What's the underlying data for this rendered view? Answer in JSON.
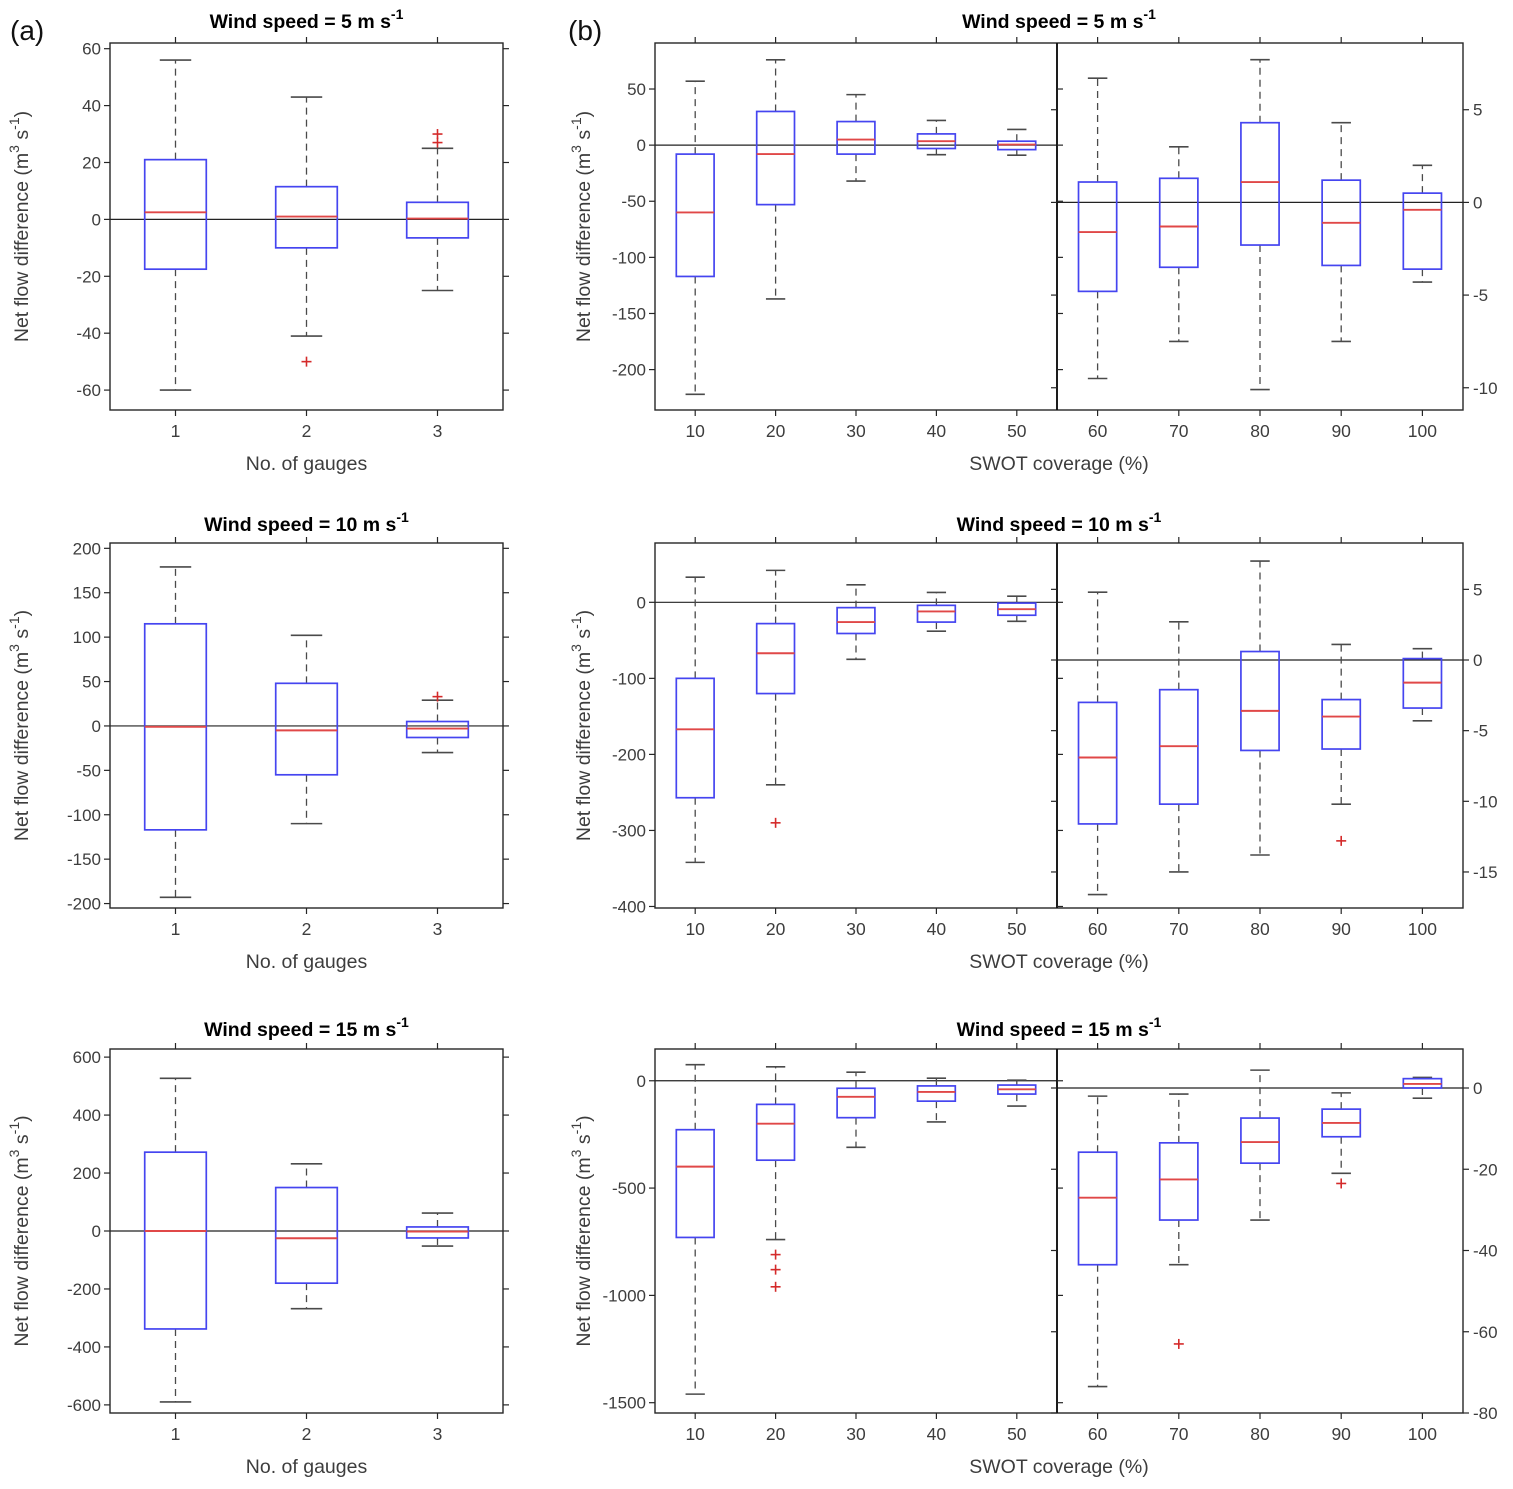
{
  "figure": {
    "panel_a_label": "(a)",
    "panel_b_label": "(b)",
    "colors": {
      "box": "#4545f0",
      "median": "#e04848",
      "outlier": "#d42a2a",
      "whisker": "#4a4a4a",
      "axis": "#262626",
      "zero_line": "#222222",
      "tick_label": "#3d3d3d",
      "title": "#000000"
    }
  },
  "chart_data": {
    "type": "box",
    "grid": false,
    "legend": false,
    "zero_reference_line": true,
    "ylabel_parts": [
      {
        "t": "Net flow difference (m"
      },
      {
        "t": "3",
        "sup": true
      },
      {
        "t": " s"
      },
      {
        "t": "-1",
        "sup": true
      },
      {
        "t": ")"
      }
    ],
    "rows": [
      {
        "wind_speed": "5",
        "title_parts": [
          {
            "t": "Wind speed = 5 m s"
          },
          {
            "t": "-1",
            "sup": true
          }
        ],
        "panel_a": {
          "xlabel": "No. of gauges",
          "categories": [
            "1",
            "2",
            "3"
          ],
          "ylim": [
            -67,
            62
          ],
          "yticks": [
            -60,
            -40,
            -20,
            0,
            20,
            40,
            60
          ],
          "boxes": [
            {
              "cat": "1",
              "whisker_low": -60,
              "q1": -17.5,
              "median": 2.5,
              "q3": 21,
              "whisker_high": 56,
              "outliers": []
            },
            {
              "cat": "2",
              "whisker_low": -41,
              "q1": -10,
              "median": 1,
              "q3": 11.5,
              "whisker_high": 43,
              "outliers": [
                -50
              ]
            },
            {
              "cat": "3",
              "whisker_low": -25,
              "q1": -6.5,
              "median": 0.3,
              "q3": 6,
              "whisker_high": 25,
              "outliers": [
                27,
                30
              ]
            }
          ]
        },
        "panel_b": {
          "xlabel": "SWOT coverage (%)",
          "left": {
            "categories": [
              "10",
              "20",
              "30",
              "40",
              "50"
            ],
            "ylim": [
              -236,
              91
            ],
            "yticks": [
              50,
              0,
              -50,
              -100,
              -150,
              -200
            ],
            "boxes": [
              {
                "cat": "10",
                "whisker_low": -222,
                "q1": -117,
                "median": -60,
                "q3": -8,
                "whisker_high": 57,
                "outliers": []
              },
              {
                "cat": "20",
                "whisker_low": -137,
                "q1": -53,
                "median": -8,
                "q3": 30,
                "whisker_high": 76,
                "outliers": []
              },
              {
                "cat": "30",
                "whisker_low": -32,
                "q1": -8,
                "median": 5,
                "q3": 21,
                "whisker_high": 45,
                "outliers": []
              },
              {
                "cat": "40",
                "whisker_low": -8.5,
                "q1": -3,
                "median": 3.5,
                "q3": 10,
                "whisker_high": 22,
                "outliers": []
              },
              {
                "cat": "50",
                "whisker_low": -9,
                "q1": -4,
                "median": 0.5,
                "q3": 3.5,
                "whisker_high": 14,
                "outliers": []
              }
            ]
          },
          "right": {
            "categories": [
              "60",
              "70",
              "80",
              "90",
              "100"
            ],
            "ylim": [
              -11.2,
              8.6
            ],
            "yticks": [
              5,
              0,
              -5,
              -10
            ],
            "boxes": [
              {
                "cat": "60",
                "whisker_low": -9.5,
                "q1": -4.8,
                "median": -1.6,
                "q3": 1.1,
                "whisker_high": 6.7,
                "outliers": []
              },
              {
                "cat": "70",
                "whisker_low": -7.5,
                "q1": -3.5,
                "median": -1.3,
                "q3": 1.3,
                "whisker_high": 3.0,
                "outliers": []
              },
              {
                "cat": "80",
                "whisker_low": -10.1,
                "q1": -2.3,
                "median": 1.1,
                "q3": 4.3,
                "whisker_high": 7.7,
                "outliers": []
              },
              {
                "cat": "90",
                "whisker_low": -7.5,
                "q1": -3.4,
                "median": -1.1,
                "q3": 1.2,
                "whisker_high": 4.3,
                "outliers": []
              },
              {
                "cat": "100",
                "whisker_low": -4.3,
                "q1": -3.6,
                "median": -0.4,
                "q3": 0.5,
                "whisker_high": 2.0,
                "outliers": []
              }
            ]
          }
        }
      },
      {
        "wind_speed": "10",
        "title_parts": [
          {
            "t": "Wind speed = 10 m s"
          },
          {
            "t": "-1",
            "sup": true
          }
        ],
        "panel_a": {
          "xlabel": "No. of gauges",
          "categories": [
            "1",
            "2",
            "3"
          ],
          "ylim": [
            -205,
            206
          ],
          "yticks": [
            -200,
            -150,
            -100,
            -50,
            0,
            50,
            100,
            150,
            200
          ],
          "boxes": [
            {
              "cat": "1",
              "whisker_low": -193,
              "q1": -117,
              "median": -1,
              "q3": 115,
              "whisker_high": 179,
              "outliers": []
            },
            {
              "cat": "2",
              "whisker_low": -110,
              "q1": -55,
              "median": -5,
              "q3": 48,
              "whisker_high": 102,
              "outliers": []
            },
            {
              "cat": "3",
              "whisker_low": -30,
              "q1": -13,
              "median": -3,
              "q3": 5,
              "whisker_high": 29,
              "outliers": [
                33
              ]
            }
          ]
        },
        "panel_b": {
          "xlabel": "SWOT coverage (%)",
          "left": {
            "categories": [
              "10",
              "20",
              "30",
              "40",
              "50"
            ],
            "ylim": [
              -402,
              78
            ],
            "yticks": [
              0,
              -100,
              -200,
              -300,
              -400
            ],
            "boxes": [
              {
                "cat": "10",
                "whisker_low": -342,
                "q1": -257,
                "median": -167,
                "q3": -100,
                "whisker_high": 33,
                "outliers": []
              },
              {
                "cat": "20",
                "whisker_low": -240,
                "q1": -120,
                "median": -67,
                "q3": -28,
                "whisker_high": 42,
                "outliers": [
                  -290
                ]
              },
              {
                "cat": "30",
                "whisker_low": -75,
                "q1": -41,
                "median": -26,
                "q3": -7,
                "whisker_high": 23,
                "outliers": []
              },
              {
                "cat": "40",
                "whisker_low": -38,
                "q1": -26,
                "median": -12,
                "q3": -4,
                "whisker_high": 13,
                "outliers": []
              },
              {
                "cat": "50",
                "whisker_low": -25,
                "q1": -17,
                "median": -9,
                "q3": -1,
                "whisker_high": 8,
                "outliers": []
              }
            ]
          },
          "right": {
            "categories": [
              "60",
              "70",
              "80",
              "90",
              "100"
            ],
            "ylim": [
              -17.55,
              8.28
            ],
            "yticks": [
              5,
              0,
              -5,
              -10,
              -15
            ],
            "boxes": [
              {
                "cat": "60",
                "whisker_low": -16.6,
                "q1": -11.6,
                "median": -6.9,
                "q3": -3.0,
                "whisker_high": 4.8,
                "outliers": []
              },
              {
                "cat": "70",
                "whisker_low": -15.0,
                "q1": -10.2,
                "median": -6.1,
                "q3": -2.1,
                "whisker_high": 2.7,
                "outliers": []
              },
              {
                "cat": "80",
                "whisker_low": -13.8,
                "q1": -6.4,
                "median": -3.6,
                "q3": 0.6,
                "whisker_high": 7.0,
                "outliers": []
              },
              {
                "cat": "90",
                "whisker_low": -10.2,
                "q1": -6.3,
                "median": -4.0,
                "q3": -2.8,
                "whisker_high": 1.1,
                "outliers": [
                  -12.8
                ]
              },
              {
                "cat": "100",
                "whisker_low": -4.3,
                "q1": -3.4,
                "median": -1.6,
                "q3": 0.1,
                "whisker_high": 0.8,
                "outliers": []
              }
            ]
          }
        }
      },
      {
        "wind_speed": "15",
        "title_parts": [
          {
            "t": "Wind speed = 15 m s"
          },
          {
            "t": "-1",
            "sup": true
          }
        ],
        "panel_a": {
          "xlabel": "No. of gauges",
          "categories": [
            "1",
            "2",
            "3"
          ],
          "ylim": [
            -628,
            628
          ],
          "yticks": [
            -600,
            -400,
            -200,
            0,
            200,
            400,
            600
          ],
          "boxes": [
            {
              "cat": "1",
              "whisker_low": -590,
              "q1": -338,
              "median": 0,
              "q3": 272,
              "whisker_high": 527,
              "outliers": []
            },
            {
              "cat": "2",
              "whisker_low": -268,
              "q1": -180,
              "median": -25,
              "q3": 150,
              "whisker_high": 232,
              "outliers": []
            },
            {
              "cat": "3",
              "whisker_low": -52,
              "q1": -24,
              "median": -2,
              "q3": 14,
              "whisker_high": 62,
              "outliers": []
            }
          ]
        },
        "panel_b": {
          "xlabel": "SWOT coverage (%)",
          "left": {
            "categories": [
              "10",
              "20",
              "30",
              "40",
              "50"
            ],
            "ylim": [
              -1548,
              148
            ],
            "yticks": [
              0,
              -500,
              -1000,
              -1500
            ],
            "boxes": [
              {
                "cat": "10",
                "whisker_low": -1460,
                "q1": -730,
                "median": -400,
                "q3": -228,
                "whisker_high": 75,
                "outliers": []
              },
              {
                "cat": "20",
                "whisker_low": -740,
                "q1": -370,
                "median": -200,
                "q3": -110,
                "whisker_high": 65,
                "outliers": [
                  -810,
                  -880,
                  -960
                ]
              },
              {
                "cat": "30",
                "whisker_low": -310,
                "q1": -172,
                "median": -75,
                "q3": -35,
                "whisker_high": 40,
                "outliers": []
              },
              {
                "cat": "40",
                "whisker_low": -192,
                "q1": -95,
                "median": -52,
                "q3": -24,
                "whisker_high": 12,
                "outliers": []
              },
              {
                "cat": "50",
                "whisker_low": -118,
                "q1": -62,
                "median": -40,
                "q3": -20,
                "whisker_high": 3,
                "outliers": []
              }
            ]
          },
          "right": {
            "categories": [
              "60",
              "70",
              "80",
              "90",
              "100"
            ],
            "ylim": [
              -80,
              9.6
            ],
            "yticks": [
              0,
              -20,
              -40,
              -60,
              -80
            ],
            "boxes": [
              {
                "cat": "60",
                "whisker_low": -73.5,
                "q1": -43.5,
                "median": -27,
                "q3": -15.8,
                "whisker_high": -2.0,
                "outliers": []
              },
              {
                "cat": "70",
                "whisker_low": -43.5,
                "q1": -32.5,
                "median": -22.5,
                "q3": -13.5,
                "whisker_high": -1.5,
                "outliers": [
                  -63
                ]
              },
              {
                "cat": "80",
                "whisker_low": -32.5,
                "q1": -18.5,
                "median": -13.3,
                "q3": -7.4,
                "whisker_high": 4.4,
                "outliers": []
              },
              {
                "cat": "90",
                "whisker_low": -21.0,
                "q1": -12.0,
                "median": -8.6,
                "q3": -5.2,
                "whisker_high": -1.2,
                "outliers": [
                  -23.5
                ]
              },
              {
                "cat": "100",
                "whisker_low": -2.5,
                "q1": 0.0,
                "median": 1.0,
                "q3": 2.3,
                "whisker_high": 2.6,
                "outliers": []
              }
            ]
          }
        }
      }
    ]
  }
}
